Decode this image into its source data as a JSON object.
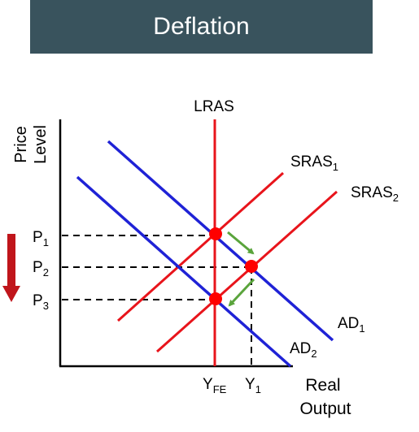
{
  "title": "Deflation",
  "axes": {
    "y_label_line1": "Price",
    "y_label_line2": "Level",
    "x_label_line1": "Real",
    "x_label_line2": "Output"
  },
  "curves": {
    "lras": "LRAS",
    "sras1": {
      "base": "SRAS",
      "sub": "1"
    },
    "sras2": {
      "base": "SRAS",
      "sub": "2"
    },
    "ad1": {
      "base": "AD",
      "sub": "1"
    },
    "ad2": {
      "base": "AD",
      "sub": "2"
    }
  },
  "price_levels": [
    {
      "base": "P",
      "sub": "1"
    },
    {
      "base": "P",
      "sub": "2"
    },
    {
      "base": "P",
      "sub": "3"
    }
  ],
  "output_levels": {
    "yfe": {
      "base": "Y",
      "sub": "FE"
    },
    "y1": {
      "base": "Y",
      "sub": "1"
    }
  },
  "colors": {
    "title_bar": "#39535d",
    "supply_curves": "#e8141b",
    "demand_curves": "#1f22d6",
    "equilibrium_points": "#ff0000",
    "shift_arrows": "#5aa43c",
    "price_down_arrow": "#c0151b"
  }
}
